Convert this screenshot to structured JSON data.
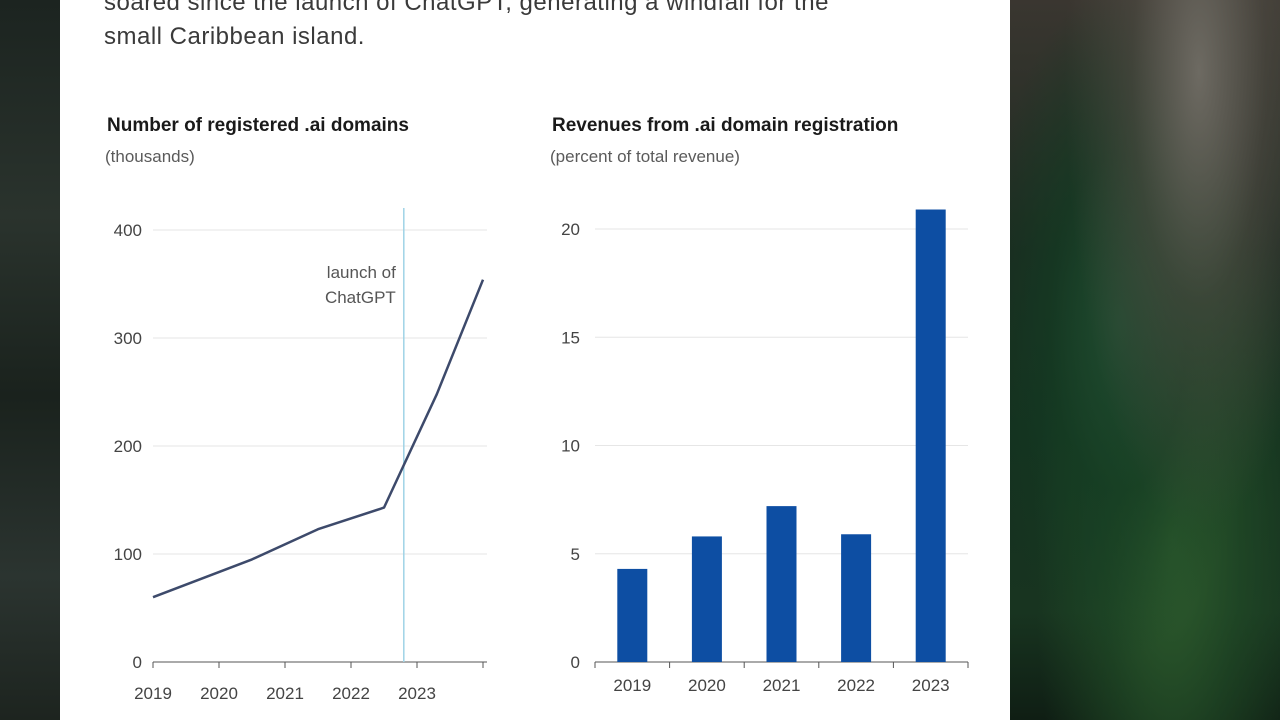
{
  "intro": {
    "line1": "soared since the launch of ChatGPT, generating a windfall for the",
    "line2": "small Caribbean island."
  },
  "colors": {
    "line": "#3d4a6b",
    "bar": "#0d4ea3",
    "marker": "#9fd3e6",
    "grid": "#e6e6e6",
    "axis": "#555555"
  },
  "chart_data": [
    {
      "type": "line",
      "title": "Number of registered .ai domains",
      "subtitle": "(thousands)",
      "xlabel": "",
      "ylabel": "",
      "x_ticks": [
        "2019",
        "2020",
        "2021",
        "2022",
        "2023"
      ],
      "y_ticks": [
        "0",
        "100",
        "200",
        "300",
        "400"
      ],
      "ylim": [
        0,
        400
      ],
      "xlim": [
        2019.0,
        2024.0
      ],
      "grid": true,
      "series": [
        {
          "x": [
            2019.0,
            2020.5,
            2021.5,
            2022.5,
            2023.3,
            2024.0
          ],
          "values": [
            60,
            95,
            123,
            143,
            248,
            354
          ]
        }
      ],
      "annotation": {
        "text_line1": "launch of",
        "text_line2": "ChatGPT",
        "x": 2022.8
      }
    },
    {
      "type": "bar",
      "title": "Revenues from .ai domain registration",
      "subtitle": "(percent of total revenue)",
      "xlabel": "",
      "ylabel": "",
      "categories": [
        "2019",
        "2020",
        "2021",
        "2022",
        "2023"
      ],
      "values": [
        4.3,
        5.8,
        7.2,
        5.9,
        20.9
      ],
      "y_ticks": [
        "0",
        "5",
        "10",
        "15",
        "20"
      ],
      "ylim": [
        0,
        20.9
      ],
      "grid": true
    }
  ]
}
